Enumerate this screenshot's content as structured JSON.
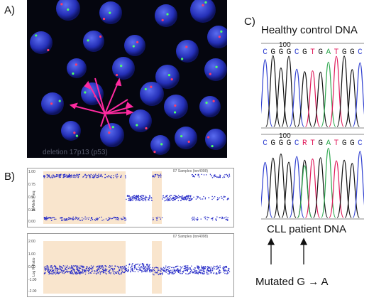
{
  "panels": {
    "a_label": "A)",
    "b_label": "B)",
    "c_label": "C)"
  },
  "fish": {
    "caption": "deletion 17p13 (p53)"
  },
  "snp_plot": {
    "title": "07 Samples (ton4098)",
    "ylabel": "B Allele Freq",
    "ticks": [
      "1.00",
      "0.75",
      "0.50",
      "0.25",
      "0.00"
    ]
  },
  "cn_plot": {
    "title": "07 Samples (ton4098)",
    "ylabel": "Log R Ratio",
    "ticks": [
      "2.00",
      "1.00",
      "0.00",
      "-1.00",
      "-2.00"
    ]
  },
  "sequencing": {
    "healthy_title": "Healthy control DNA",
    "healthy_position": "100",
    "healthy_bases": [
      "C",
      "G",
      "G",
      "G",
      "C",
      "G",
      "T",
      "G",
      "A",
      "T",
      "G",
      "G",
      "C"
    ],
    "patient_position": "100",
    "patient_bases": [
      "C",
      "G",
      "G",
      "G",
      "C",
      "R",
      "T",
      "G",
      "A",
      "T",
      "G",
      "G",
      "C"
    ],
    "patient_title": "CLL patient DNA",
    "mutation_label": "Mutated G → A"
  },
  "base_colors": {
    "A": "#2fa84f",
    "C": "#2f3fd0",
    "G": "#111111",
    "T": "#e0195a",
    "R": "#e0195a"
  }
}
